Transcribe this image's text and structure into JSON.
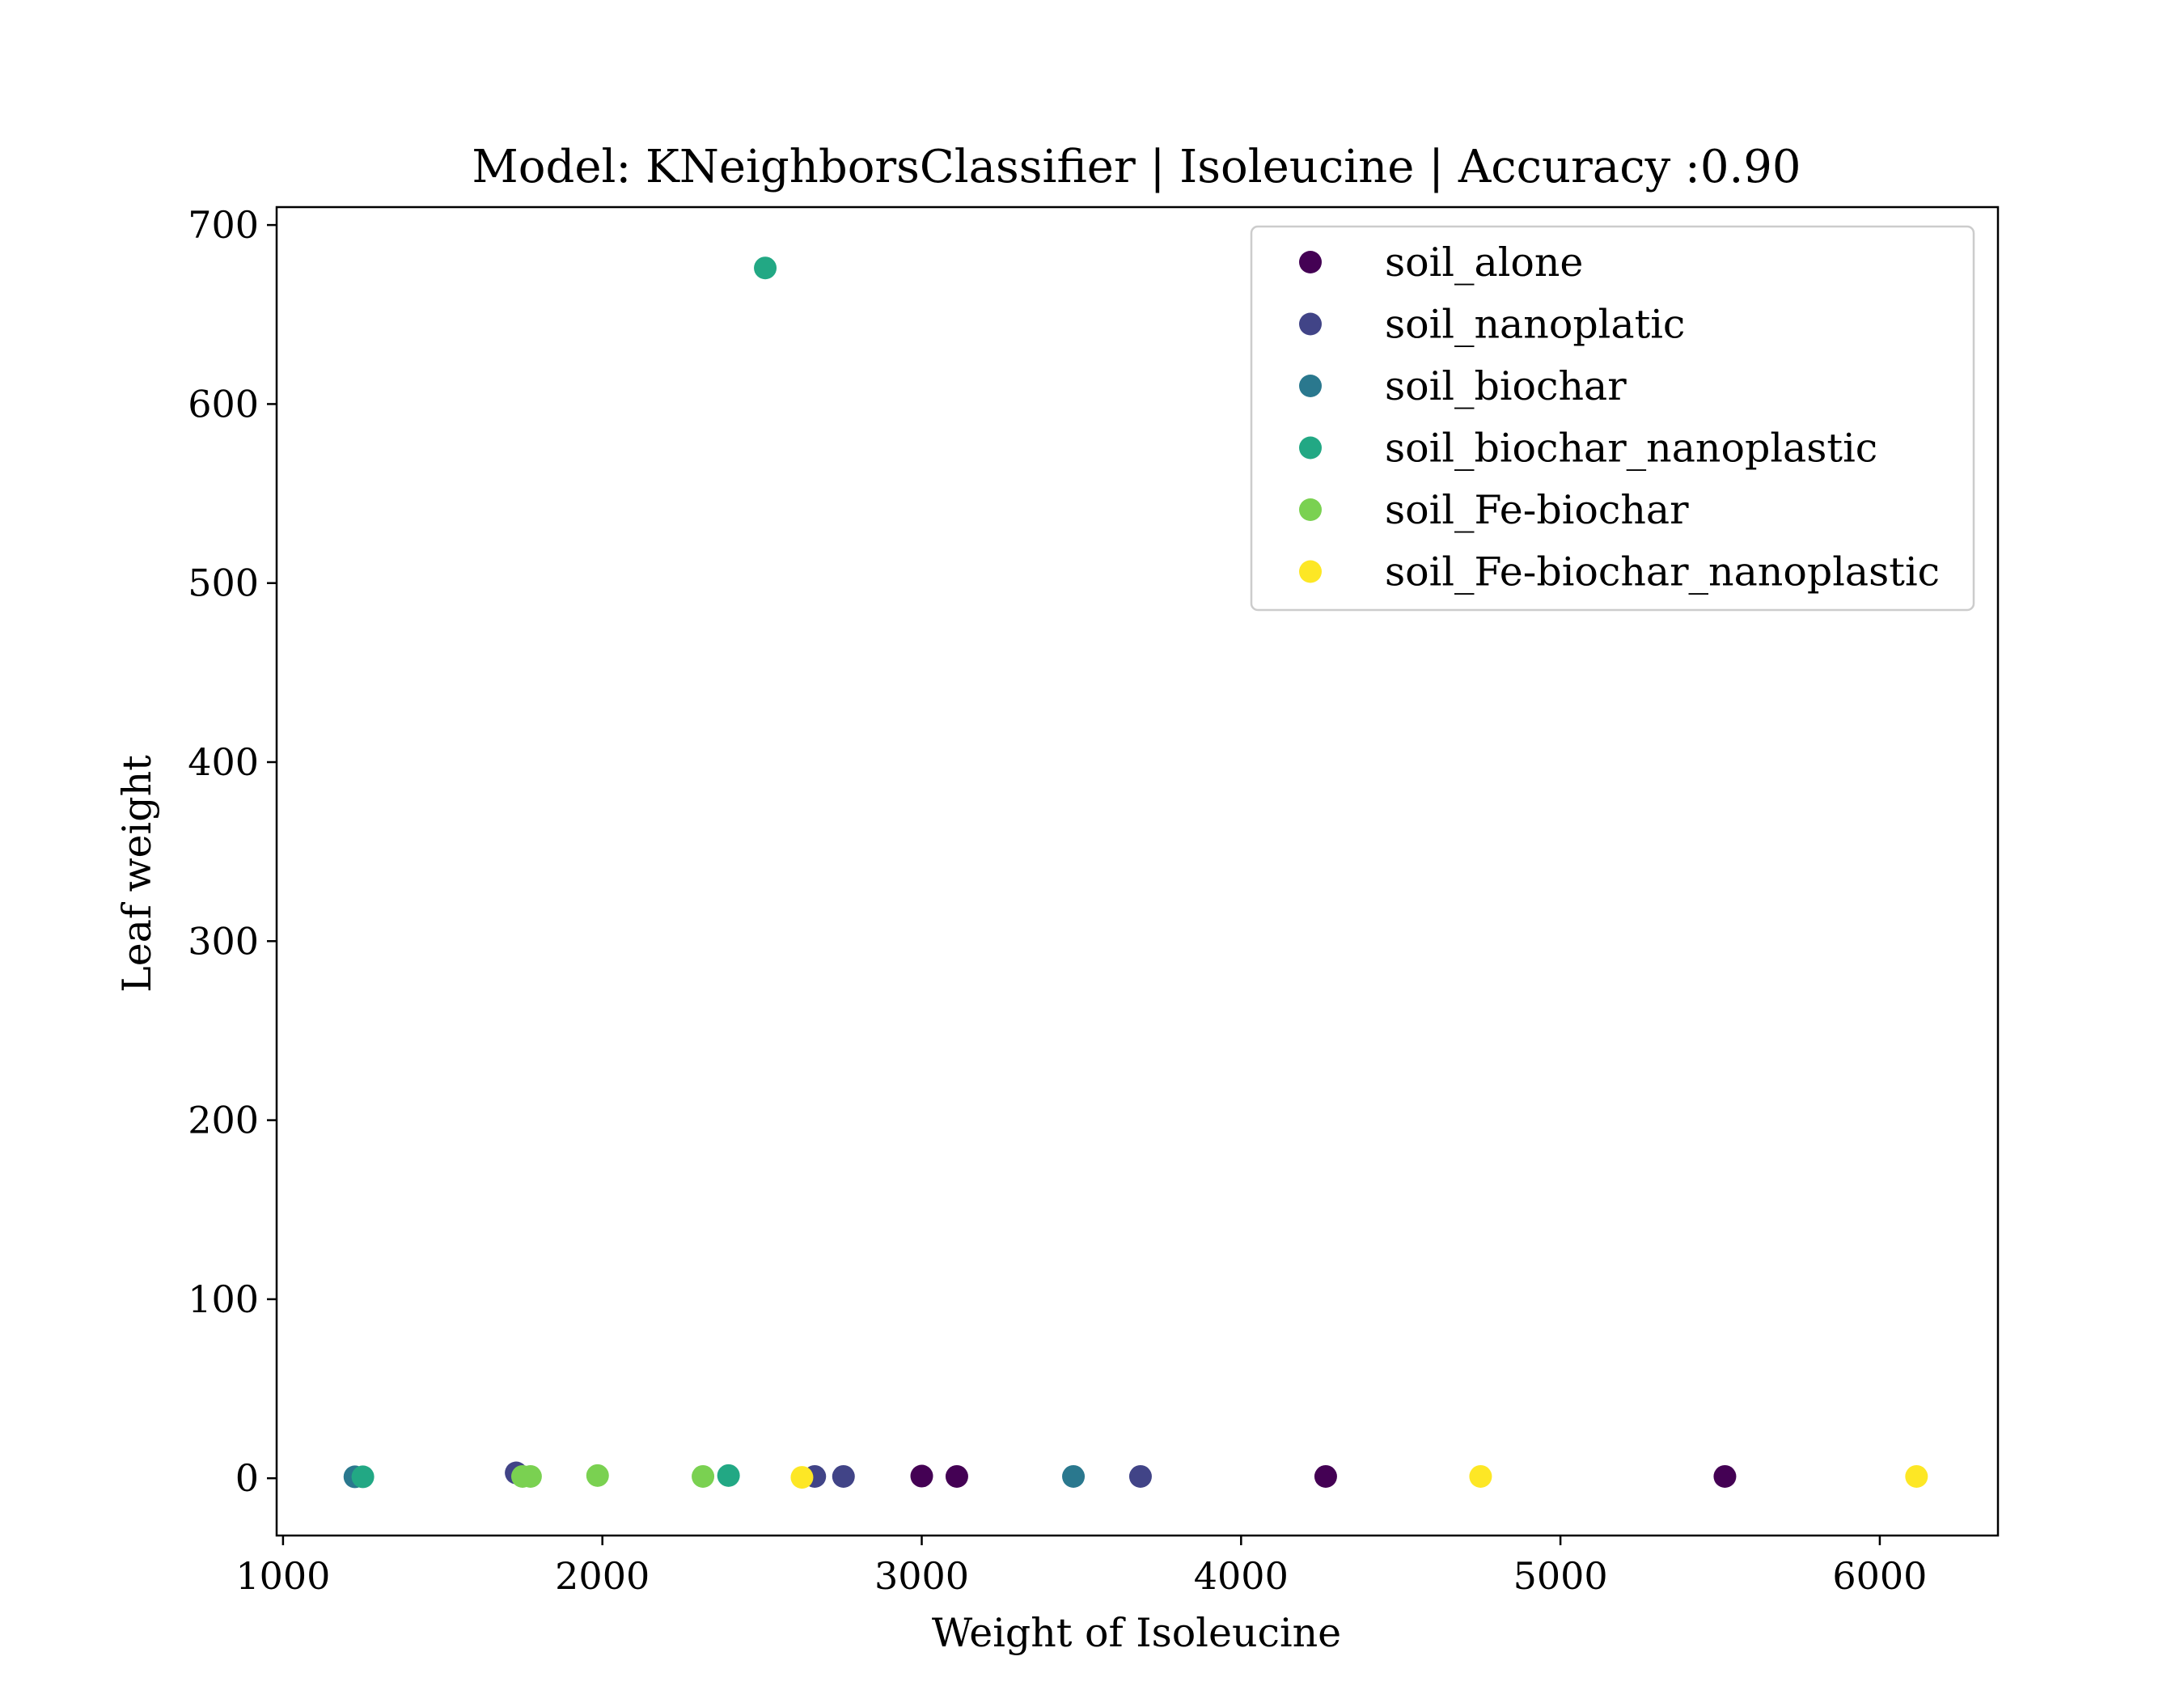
{
  "chart_data": {
    "type": "scatter",
    "title": "Model: KNeighborsClassifier | Isoleucine | Accuracy :0.90",
    "xlabel": "Weight of Isoleucine",
    "ylabel": "Leaf weight",
    "xlim": [
      980,
      6370
    ],
    "ylim": [
      -32,
      710
    ],
    "xticks": [
      1000,
      2000,
      3000,
      4000,
      5000,
      6000
    ],
    "xtick_labels": [
      "1000",
      "2000",
      "3000",
      "4000",
      "5000",
      "6000"
    ],
    "yticks": [
      0,
      100,
      200,
      300,
      400,
      500,
      600,
      700
    ],
    "ytick_labels": [
      "0",
      "100",
      "200",
      "300",
      "400",
      "500",
      "600",
      "700"
    ],
    "grid": false,
    "legend_position": "top-right",
    "series": [
      {
        "name": "soil_alone",
        "color": "#440154",
        "points": [
          [
            3000,
            1.2
          ],
          [
            3110,
            1.0
          ],
          [
            4265,
            1.0
          ],
          [
            5515,
            1.0
          ]
        ]
      },
      {
        "name": "soil_nanoplatic",
        "color": "#414487",
        "points": [
          [
            1730,
            3.0
          ],
          [
            2665,
            1.0
          ],
          [
            2755,
            1.0
          ],
          [
            3685,
            1.0
          ]
        ]
      },
      {
        "name": "soil_biochar",
        "color": "#2a788e",
        "points": [
          [
            1225,
            0.8
          ],
          [
            3475,
            1.0
          ]
        ]
      },
      {
        "name": "soil_biochar_nanoplastic",
        "color": "#22a884",
        "points": [
          [
            1250,
            0.8
          ],
          [
            2395,
            1.5
          ],
          [
            2510,
            676
          ]
        ]
      },
      {
        "name": "soil_Fe-biochar",
        "color": "#7ad151",
        "points": [
          [
            1750,
            1.0
          ],
          [
            1775,
            1.0
          ],
          [
            1985,
            1.5
          ],
          [
            2315,
            1.0
          ]
        ]
      },
      {
        "name": "soil_Fe-biochar_nanoplastic",
        "color": "#fde725",
        "points": [
          [
            2625,
            0.5
          ],
          [
            4750,
            1.0
          ],
          [
            6115,
            1.0
          ]
        ]
      }
    ]
  }
}
